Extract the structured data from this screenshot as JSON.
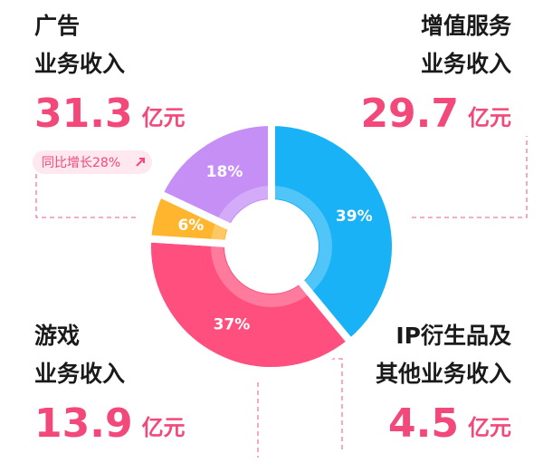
{
  "chart_data": {
    "type": "donut",
    "unit": "亿元",
    "series": [
      {
        "name_lines": [
          "广告",
          "业务收入"
        ],
        "amount": 31.3,
        "share": 39,
        "share_label": "39%",
        "color": "#19b2f6",
        "growth": "同比增长28%"
      },
      {
        "name_lines": [
          "增值服务",
          "业务收入"
        ],
        "amount": 29.7,
        "share": 37,
        "share_label": "37%",
        "color": "#ff4f7e"
      },
      {
        "name_lines": [
          "IP衍生品及",
          "其他业务收入"
        ],
        "amount": 4.5,
        "share": 6,
        "share_label": "6%",
        "color": "#ffb62e"
      },
      {
        "name_lines": [
          "游戏",
          "业务收入"
        ],
        "amount": 13.9,
        "share": 18,
        "share_label": "18%",
        "color": "#c58ff6"
      }
    ]
  }
}
